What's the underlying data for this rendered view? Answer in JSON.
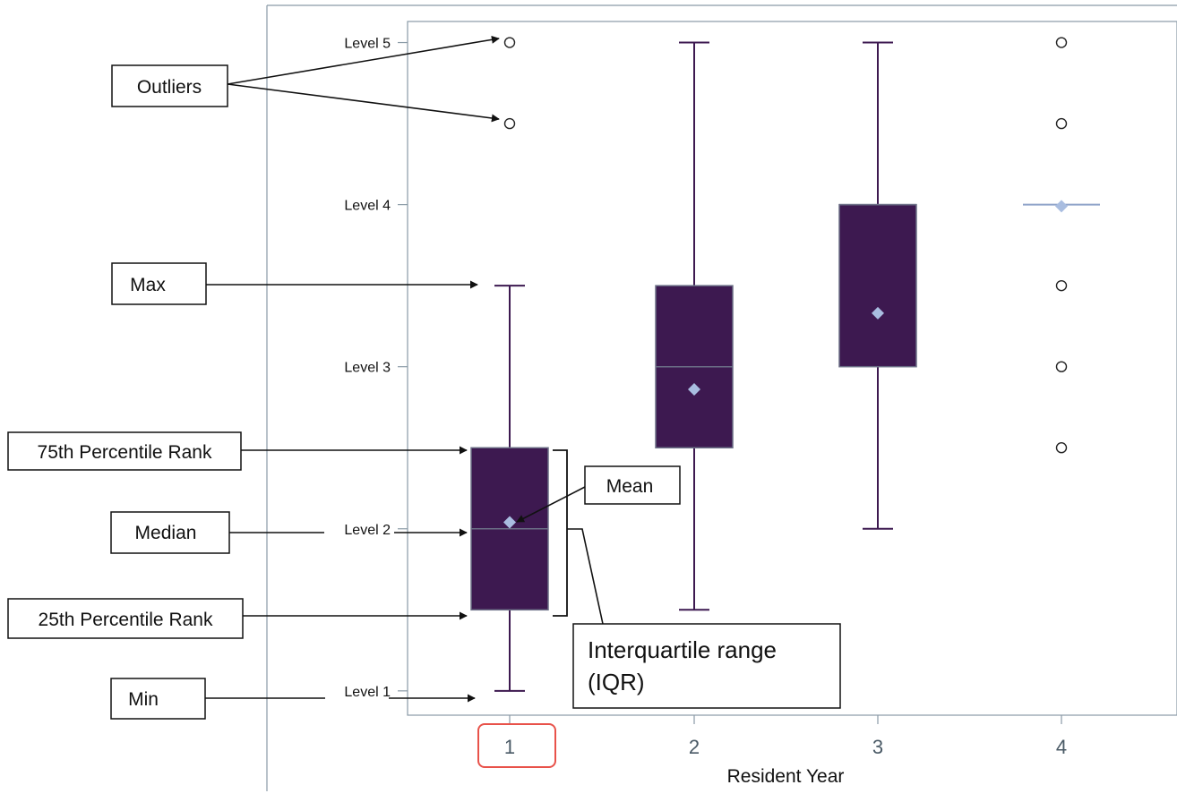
{
  "chart_data": {
    "type": "box",
    "xlabel": "Resident Year",
    "categories": [
      "1",
      "2",
      "3",
      "4"
    ],
    "yticks": [
      {
        "value": 1,
        "label": "Level 1"
      },
      {
        "value": 2,
        "label": "Level 2"
      },
      {
        "value": 3,
        "label": "Level 3"
      },
      {
        "value": 4,
        "label": "Level 4"
      },
      {
        "value": 5,
        "label": "Level 5"
      }
    ],
    "ylim": [
      0.85,
      5.13
    ],
    "boxes": [
      {
        "category": "1",
        "min": 1.0,
        "q1": 1.5,
        "median": 2.0,
        "q3": 2.5,
        "max": 3.5,
        "mean": 2.04,
        "outliers": [
          4.5,
          5.0
        ]
      },
      {
        "category": "2",
        "min": 1.5,
        "q1": 2.5,
        "median": 3.0,
        "q3": 3.5,
        "max": 5.0,
        "mean": 2.86,
        "outliers": []
      },
      {
        "category": "3",
        "min": 2.0,
        "q1": 3.0,
        "median": 4.0,
        "q3": 4.0,
        "max": 5.0,
        "mean": 3.33,
        "outliers": []
      },
      {
        "category": "4",
        "min": 4.0,
        "q1": 4.0,
        "median": 4.0,
        "q3": 4.0,
        "max": 4.0,
        "mean": 3.99,
        "outliers": [
          2.5,
          3.0,
          3.5,
          4.5,
          5.0
        ]
      }
    ],
    "annotations": [
      {
        "label": "Outliers",
        "target": "outliers"
      },
      {
        "label": "Max",
        "target": "max"
      },
      {
        "label": "75th Percentile Rank",
        "target": "q3"
      },
      {
        "label": "Median",
        "target": "median"
      },
      {
        "label": "25th Percentile Rank",
        "target": "q1"
      },
      {
        "label": "Min",
        "target": "min"
      },
      {
        "label": "Mean",
        "target": "mean"
      },
      {
        "label_lines": [
          "Interquartile range",
          "(IQR)"
        ],
        "target": "iqr"
      }
    ],
    "highlighted_category": "1",
    "colors": {
      "box_fill": "#3d1950",
      "whisker": "#3d1950",
      "mean_marker": "#a9bde0",
      "frame": "#8a9aa6",
      "highlight": "#e8524a",
      "arrow": "#111111"
    }
  }
}
